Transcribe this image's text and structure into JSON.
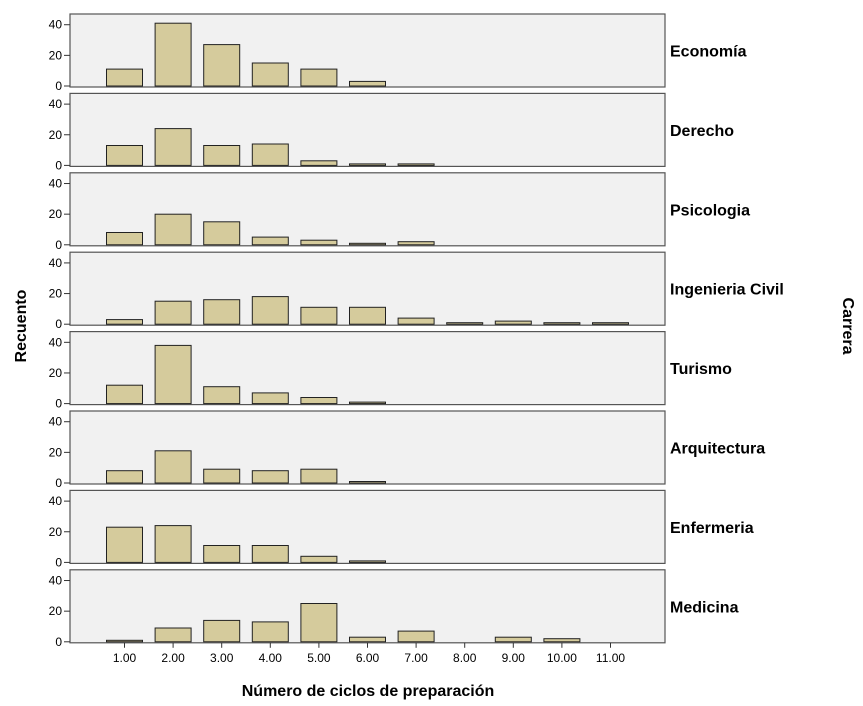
{
  "chart_data": {
    "type": "bar",
    "layout": "small-multiples, stacked vertically, shared x axis",
    "xlabel": "Número de ciclos de preparación",
    "ylabel": "Recuento",
    "facet_label": "Carrera",
    "x_ticks": [
      "1.00",
      "2.00",
      "3.00",
      "4.00",
      "5.00",
      "6.00",
      "7.00",
      "8.00",
      "9.00",
      "10.00",
      "11.00"
    ],
    "y_ticks": [
      "0",
      "20",
      "40"
    ],
    "ylim": [
      0,
      47
    ],
    "grid": false,
    "colors": {
      "bar_fill": "#d5cb9c",
      "bar_stroke": "#222222",
      "panel_fill": "#f1f1f1",
      "panel_stroke": "#555555"
    },
    "panels": [
      {
        "label": "Economía",
        "values": [
          11,
          41,
          27,
          15,
          11,
          3,
          null,
          null,
          null,
          null,
          null
        ]
      },
      {
        "label": "Derecho",
        "values": [
          13,
          24,
          13,
          14,
          3,
          1,
          1,
          null,
          null,
          null,
          null
        ]
      },
      {
        "label": "Psicologia",
        "values": [
          8,
          20,
          15,
          5,
          3,
          1,
          2,
          null,
          null,
          null,
          null
        ]
      },
      {
        "label": "Ingenieria Civil",
        "values": [
          3,
          15,
          16,
          18,
          11,
          11,
          4,
          1,
          2,
          1,
          1
        ]
      },
      {
        "label": "Turismo",
        "values": [
          12,
          38,
          11,
          7,
          4,
          1,
          null,
          null,
          null,
          null,
          null
        ]
      },
      {
        "label": "Arquitectura",
        "values": [
          8,
          21,
          9,
          8,
          9,
          1,
          null,
          null,
          null,
          null,
          null
        ]
      },
      {
        "label": "Enfermeria",
        "values": [
          23,
          24,
          11,
          11,
          4,
          1,
          null,
          null,
          null,
          null,
          null
        ]
      },
      {
        "label": "Medicina",
        "values": [
          1,
          9,
          14,
          13,
          25,
          3,
          7,
          null,
          3,
          2,
          null
        ]
      }
    ]
  }
}
